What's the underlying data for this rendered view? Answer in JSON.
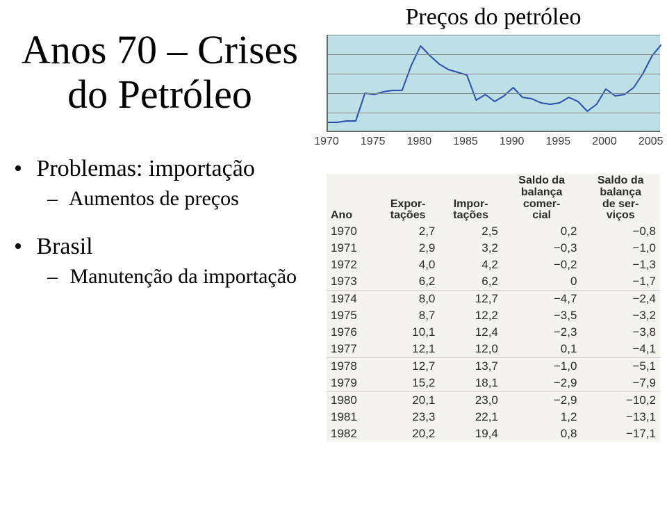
{
  "title_left_line1": "Anos 70 – Crises",
  "title_left_line2": "do Petróleo",
  "chart_title": "Preços do petróleo",
  "bullets": {
    "problem": "Problemas: importação",
    "problem_sub": "Aumentos de preços",
    "brasil": "Brasil",
    "brasil_sub": "Manutenção da importação"
  },
  "chart": {
    "type": "line",
    "background_color": "#bde0e6",
    "grid_color": "#888888",
    "axis_color": "#666666",
    "line_color": "#2a4db0",
    "line_width": 2,
    "xlim": [
      1970,
      2006
    ],
    "ylim": [
      0,
      70
    ],
    "grid_y_values": [
      14,
      28,
      42,
      56,
      70
    ],
    "xticks": [
      1970,
      1975,
      1980,
      1985,
      1990,
      1995,
      2000,
      2005
    ],
    "points": [
      [
        1970,
        7
      ],
      [
        1971,
        7
      ],
      [
        1972,
        8
      ],
      [
        1973,
        8
      ],
      [
        1974,
        28
      ],
      [
        1975,
        27
      ],
      [
        1976,
        29
      ],
      [
        1977,
        30
      ],
      [
        1978,
        30
      ],
      [
        1979,
        48
      ],
      [
        1980,
        62
      ],
      [
        1981,
        55
      ],
      [
        1982,
        49
      ],
      [
        1983,
        45
      ],
      [
        1984,
        43
      ],
      [
        1985,
        41
      ],
      [
        1986,
        23
      ],
      [
        1987,
        27
      ],
      [
        1988,
        22
      ],
      [
        1989,
        26
      ],
      [
        1990,
        32
      ],
      [
        1991,
        25
      ],
      [
        1992,
        24
      ],
      [
        1993,
        21
      ],
      [
        1994,
        20
      ],
      [
        1995,
        21
      ],
      [
        1996,
        25
      ],
      [
        1997,
        22
      ],
      [
        1998,
        15
      ],
      [
        1999,
        20
      ],
      [
        2000,
        31
      ],
      [
        2001,
        26
      ],
      [
        2002,
        27
      ],
      [
        2003,
        32
      ],
      [
        2004,
        42
      ],
      [
        2005,
        55
      ],
      [
        2006,
        63
      ]
    ],
    "tick_font_size": 16,
    "tick_color": "#3b3b3b"
  },
  "table": {
    "type": "table",
    "background_color": "#f4f3ef",
    "font_family": "Arial",
    "header_fontsize": 16,
    "cell_fontsize": 17,
    "text_color": "#2a2a2a",
    "separator_color": "#cfcfcf",
    "columns": [
      "Ano",
      "Expor-\ntações",
      "Impor-\ntações",
      "Saldo da\nbalança\ncomer-\ncial",
      "Saldo da\nbalança\nde ser-\nviços"
    ],
    "group_breaks_after": [
      1973,
      1977,
      1979
    ],
    "rows": [
      [
        "1970",
        "2,7",
        "2,5",
        "0,2",
        "−0,8"
      ],
      [
        "1971",
        "2,9",
        "3,2",
        "−0,3",
        "−1,0"
      ],
      [
        "1972",
        "4,0",
        "4,2",
        "−0,2",
        "−1,3"
      ],
      [
        "1973",
        "6,2",
        "6,2",
        "0",
        "−1,7"
      ],
      [
        "1974",
        "8,0",
        "12,7",
        "−4,7",
        "−2,4"
      ],
      [
        "1975",
        "8,7",
        "12,2",
        "−3,5",
        "−3,2"
      ],
      [
        "1976",
        "10,1",
        "12,4",
        "−2,3",
        "−3,8"
      ],
      [
        "1977",
        "12,1",
        "12,0",
        "0,1",
        "−4,1"
      ],
      [
        "1978",
        "12,7",
        "13,7",
        "−1,0",
        "−5,1"
      ],
      [
        "1979",
        "15,2",
        "18,1",
        "−2,9",
        "−7,9"
      ],
      [
        "1980",
        "20,1",
        "23,0",
        "−2,9",
        "−10,2"
      ],
      [
        "1981",
        "23,3",
        "22,1",
        "1,2",
        "−13,1"
      ],
      [
        "1982",
        "20,2",
        "19,4",
        "0,8",
        "−17,1"
      ]
    ]
  }
}
